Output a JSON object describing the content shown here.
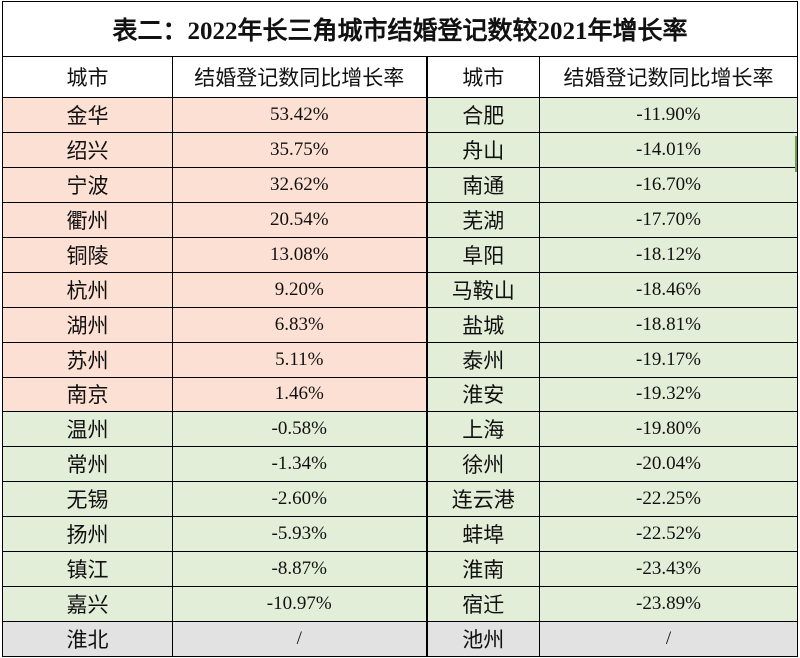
{
  "title": "表二：2022年长三角城市结婚登记数较2021年增长率",
  "headers": {
    "city_left": "城市",
    "rate_left": "结婚登记数同比增长率",
    "city_right": "城市",
    "rate_right": "结婚登记数同比增长率"
  },
  "rows": [
    {
      "l_city": "金华",
      "l_rate": "53.42%",
      "l_cat": "pos",
      "r_city": "合肥",
      "r_rate": "-11.90%",
      "r_cat": "neg"
    },
    {
      "l_city": "绍兴",
      "l_rate": "35.75%",
      "l_cat": "pos",
      "r_city": "舟山",
      "r_rate": "-14.01%",
      "r_cat": "neg"
    },
    {
      "l_city": "宁波",
      "l_rate": "32.62%",
      "l_cat": "pos",
      "r_city": "南通",
      "r_rate": "-16.70%",
      "r_cat": "neg"
    },
    {
      "l_city": "衢州",
      "l_rate": "20.54%",
      "l_cat": "pos",
      "r_city": "芜湖",
      "r_rate": "-17.70%",
      "r_cat": "neg"
    },
    {
      "l_city": "铜陵",
      "l_rate": "13.08%",
      "l_cat": "pos",
      "r_city": "阜阳",
      "r_rate": "-18.12%",
      "r_cat": "neg"
    },
    {
      "l_city": "杭州",
      "l_rate": "9.20%",
      "l_cat": "pos",
      "r_city": "马鞍山",
      "r_rate": "-18.46%",
      "r_cat": "neg"
    },
    {
      "l_city": "湖州",
      "l_rate": "6.83%",
      "l_cat": "pos",
      "r_city": "盐城",
      "r_rate": "-18.81%",
      "r_cat": "neg"
    },
    {
      "l_city": "苏州",
      "l_rate": "5.11%",
      "l_cat": "pos",
      "r_city": "泰州",
      "r_rate": "-19.17%",
      "r_cat": "neg"
    },
    {
      "l_city": "南京",
      "l_rate": "1.46%",
      "l_cat": "pos",
      "r_city": "淮安",
      "r_rate": "-19.32%",
      "r_cat": "neg"
    },
    {
      "l_city": "温州",
      "l_rate": "-0.58%",
      "l_cat": "neg",
      "r_city": "上海",
      "r_rate": "-19.80%",
      "r_cat": "neg"
    },
    {
      "l_city": "常州",
      "l_rate": "-1.34%",
      "l_cat": "neg",
      "r_city": "徐州",
      "r_rate": "-20.04%",
      "r_cat": "neg"
    },
    {
      "l_city": "无锡",
      "l_rate": "-2.60%",
      "l_cat": "neg",
      "r_city": "连云港",
      "r_rate": "-22.25%",
      "r_cat": "neg"
    },
    {
      "l_city": "扬州",
      "l_rate": "-5.93%",
      "l_cat": "neg",
      "r_city": "蚌埠",
      "r_rate": "-22.52%",
      "r_cat": "neg"
    },
    {
      "l_city": "镇江",
      "l_rate": "-8.87%",
      "l_cat": "neg",
      "r_city": "淮南",
      "r_rate": "-23.43%",
      "r_cat": "neg"
    },
    {
      "l_city": "嘉兴",
      "l_rate": "-10.97%",
      "l_cat": "neg",
      "r_city": "宿迁",
      "r_rate": "-23.89%",
      "r_cat": "neg"
    },
    {
      "l_city": "淮北",
      "l_rate": "/",
      "l_cat": "na",
      "r_city": "池州",
      "r_rate": "/",
      "r_cat": "na"
    }
  ],
  "colors": {
    "positive_fill": "#fde0d4",
    "negative_fill": "#e3eed9",
    "missing_fill": "#e2e2e2",
    "grid": "#000000"
  }
}
